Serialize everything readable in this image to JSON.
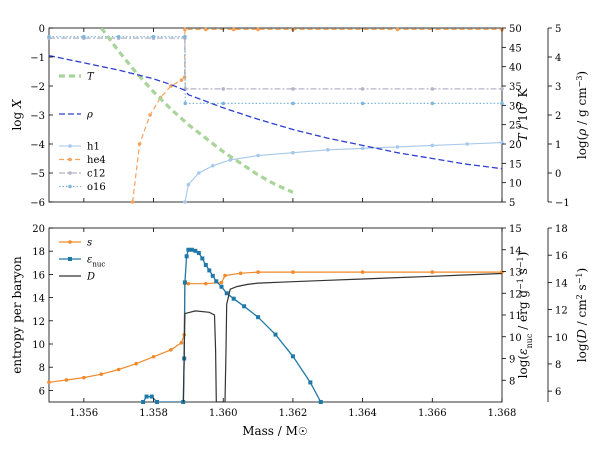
{
  "colors": {
    "h1": "#a6c8ea",
    "he4": "#f4a35b",
    "c12": "#b4b4c8",
    "o16": "#7fb7dc",
    "T": "#a9d49a",
    "rho": "#2e3fcf",
    "s": "#f08a2a",
    "eps": "#1f78a8",
    "D": "#333333"
  },
  "chart_data": [
    {
      "type": "line",
      "panel": "top",
      "xlim": [
        1.355,
        1.368
      ],
      "ylabel_left": "log X",
      "ylabel_right1": "T / 10^7 K",
      "ylabel_right2": "log(ρ / g cm^-3)",
      "ylim_left": [
        -6,
        0
      ],
      "ylim_right1": [
        5,
        50
      ],
      "ylim_right2": [
        -1,
        5
      ],
      "yticks_left": [
        "−6",
        "−5",
        "−4",
        "−3",
        "−2",
        "−1",
        "0"
      ],
      "yticks_right1": [
        "5",
        "10",
        "15",
        "20",
        "25",
        "30",
        "35",
        "40",
        "45",
        "50"
      ],
      "yticks_right2": [
        "−1",
        "0",
        "1",
        "2",
        "3",
        "4",
        "5"
      ],
      "grid": false,
      "legend_T": "T",
      "legend_rho": "ρ",
      "legend_species": [
        "h1",
        "he4",
        "c12",
        "o16"
      ],
      "series": [
        {
          "name": "h1",
          "axis": "logX",
          "x": [
            1.3589,
            1.359,
            1.3593,
            1.3597,
            1.3602,
            1.361,
            1.362,
            1.363,
            1.364,
            1.365,
            1.366,
            1.367,
            1.368
          ],
          "y": [
            -6.0,
            -5.4,
            -5.0,
            -4.75,
            -4.55,
            -4.4,
            -4.3,
            -4.2,
            -4.15,
            -4.1,
            -4.05,
            -4.0,
            -3.95
          ]
        },
        {
          "name": "he4",
          "axis": "logX",
          "x": [
            1.3574,
            1.3576,
            1.3579,
            1.3582,
            1.3585,
            1.3588,
            1.35889,
            1.3589,
            1.3595,
            1.3603,
            1.361,
            1.362,
            1.365,
            1.368
          ],
          "y": [
            -6.0,
            -4.0,
            -3.0,
            -2.4,
            -2.0,
            -1.8,
            -1.7,
            -0.05,
            -0.05,
            -0.05,
            -0.05,
            -0.05,
            -0.05,
            -0.05
          ]
        },
        {
          "name": "c12",
          "axis": "logX",
          "x": [
            1.355,
            1.356,
            1.357,
            1.358,
            1.3589,
            1.35891,
            1.36,
            1.362,
            1.364,
            1.366,
            1.368
          ],
          "y": [
            -0.35,
            -0.35,
            -0.35,
            -0.35,
            -0.35,
            -2.1,
            -2.1,
            -2.1,
            -2.1,
            -2.1,
            -2.1
          ]
        },
        {
          "name": "o16",
          "axis": "logX",
          "x": [
            1.355,
            1.356,
            1.357,
            1.358,
            1.3589,
            1.35891,
            1.36,
            1.362,
            1.364,
            1.366,
            1.368
          ],
          "y": [
            -0.3,
            -0.3,
            -0.3,
            -0.3,
            -0.3,
            -2.6,
            -2.6,
            -2.6,
            -2.6,
            -2.6,
            -2.6
          ]
        },
        {
          "name": "T",
          "axis": "T",
          "x": [
            1.3565,
            1.357,
            1.3575,
            1.358,
            1.3585,
            1.359,
            1.3595,
            1.36,
            1.3605,
            1.361,
            1.3615,
            1.362
          ],
          "y": [
            50,
            44,
            38.5,
            33.5,
            29,
            25,
            21.5,
            18,
            15,
            12,
            9.5,
            7.5
          ]
        },
        {
          "name": "ρ",
          "axis": "rho",
          "x": [
            1.355,
            1.356,
            1.357,
            1.358,
            1.3585,
            1.3589,
            1.359,
            1.36,
            1.361,
            1.362,
            1.363,
            1.364,
            1.365,
            1.366,
            1.367,
            1.368
          ],
          "y": [
            4.05,
            3.8,
            3.55,
            3.25,
            3.05,
            2.85,
            2.7,
            2.25,
            1.85,
            1.5,
            1.2,
            0.95,
            0.7,
            0.5,
            0.3,
            0.15
          ]
        }
      ]
    },
    {
      "type": "line",
      "panel": "bottom",
      "xlim": [
        1.355,
        1.368
      ],
      "xlabel": "Mass / M☉",
      "xticks": [
        "1.356",
        "1.358",
        "1.360",
        "1.362",
        "1.364",
        "1.366",
        "1.368"
      ],
      "ylabel_left": "entropy per baryon",
      "ylabel_right1": "log(ε_nuc / erg g^-1 s^-1)",
      "ylabel_right2": "log(D / cm^2 s^-1)",
      "ylim_left": [
        5,
        20
      ],
      "ylim_right1": [
        7,
        15
      ],
      "ylim_right2": [
        5.2,
        18
      ],
      "yticks_left": [
        "6",
        "8",
        "10",
        "12",
        "14",
        "16",
        "18",
        "20"
      ],
      "yticks_right1": [
        "8",
        "9",
        "10",
        "11",
        "12",
        "13",
        "14",
        "15"
      ],
      "yticks_right2": [
        "6",
        "8",
        "10",
        "12",
        "14",
        "16",
        "18"
      ],
      "grid": false,
      "legend": [
        "s",
        "ε_nuc",
        "D"
      ],
      "series": [
        {
          "name": "s",
          "axis": "s",
          "x": [
            1.355,
            1.3555,
            1.356,
            1.3565,
            1.357,
            1.3575,
            1.358,
            1.3585,
            1.3588,
            1.35888,
            1.3589,
            1.359,
            1.3595,
            1.35995,
            1.36005,
            1.3605,
            1.361,
            1.362,
            1.364,
            1.366,
            1.368
          ],
          "y": [
            6.7,
            6.9,
            7.1,
            7.4,
            7.8,
            8.3,
            8.9,
            9.5,
            10.1,
            10.8,
            15.2,
            15.2,
            15.2,
            15.3,
            15.9,
            16.1,
            16.2,
            16.2,
            16.2,
            16.2,
            16.2
          ]
        },
        {
          "name": "ε_nuc",
          "axis": "eps",
          "x": [
            1.3577,
            1.3578,
            1.35795,
            1.3581,
            1.35885,
            1.35888,
            1.3589,
            1.35895,
            1.359,
            1.3591,
            1.3592,
            1.3593,
            1.3594,
            1.3595,
            1.3596,
            1.3597,
            1.3598,
            1.35995,
            1.3601,
            1.3603,
            1.3606,
            1.361,
            1.3615,
            1.362,
            1.3625,
            1.3628
          ],
          "y": [
            7.0,
            7.25,
            7.25,
            7.0,
            7.0,
            9.0,
            12.5,
            13.7,
            14.0,
            14.0,
            13.95,
            13.85,
            13.6,
            13.3,
            13.05,
            12.8,
            12.55,
            12.3,
            12.0,
            11.75,
            11.4,
            10.9,
            10.1,
            9.1,
            7.9,
            7.0
          ]
        },
        {
          "name": "D",
          "axis": "D",
          "x": [
            1.35886,
            1.35888,
            1.3589,
            1.3592,
            1.3596,
            1.35975,
            1.35978,
            1.3598,
            1.36005,
            1.36008,
            1.3601,
            1.3602,
            1.3604,
            1.3607,
            1.361,
            1.362,
            1.363,
            1.364,
            1.365,
            1.366,
            1.367,
            1.368
          ],
          "y": [
            5.2,
            9.0,
            11.7,
            11.9,
            11.8,
            11.6,
            9.0,
            5.2,
            5.2,
            9.0,
            12.4,
            13.5,
            13.7,
            13.85,
            13.95,
            14.05,
            14.15,
            14.25,
            14.35,
            14.45,
            14.55,
            14.65
          ]
        }
      ]
    }
  ]
}
